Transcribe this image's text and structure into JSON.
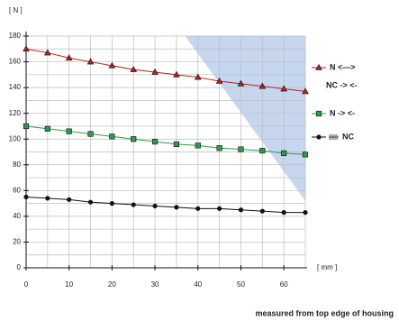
{
  "chart_data": {
    "type": "line",
    "y_label": "[ N ]",
    "x_label": "[ mm ]",
    "footer": "measured from top edge of housing",
    "x": [
      0,
      5,
      10,
      15,
      20,
      25,
      30,
      35,
      40,
      45,
      50,
      55,
      60,
      65
    ],
    "series": [
      {
        "name": "N <—>",
        "legend_sub": "NC -> <-",
        "color": "#b22222",
        "marker": "triangle",
        "values": [
          170,
          167,
          163,
          160,
          157,
          154,
          152,
          150,
          148,
          145,
          143,
          141,
          139,
          137
        ]
      },
      {
        "name": "N -> <-",
        "color": "#2e9b4e",
        "marker": "square",
        "values": [
          110,
          108,
          106,
          104,
          102,
          100,
          98,
          96,
          95,
          93,
          92,
          91,
          89,
          88
        ]
      },
      {
        "name": "NC",
        "color": "#111111",
        "marker": "circle",
        "values": [
          55,
          54,
          53,
          51,
          50,
          49,
          48,
          47,
          46,
          46,
          45,
          44,
          43,
          43
        ]
      }
    ],
    "region": {
      "x": [
        37,
        65,
        65
      ],
      "y": [
        180,
        180,
        52
      ],
      "color": "#c6d6ef"
    },
    "xlim": [
      0,
      65
    ],
    "ylim": [
      0,
      180
    ],
    "xticks": [
      0,
      10,
      20,
      30,
      40,
      50,
      60
    ],
    "yticks": [
      0,
      20,
      40,
      60,
      80,
      100,
      120,
      140,
      160,
      180
    ],
    "xgrid": [
      0,
      5,
      10,
      15,
      20,
      25,
      30,
      35,
      40,
      45,
      50,
      55,
      60,
      65
    ],
    "ygrid": [
      0,
      10,
      20,
      30,
      40,
      50,
      60,
      70,
      80,
      90,
      100,
      110,
      120,
      130,
      140,
      150,
      160,
      170,
      180
    ],
    "grid": true
  }
}
